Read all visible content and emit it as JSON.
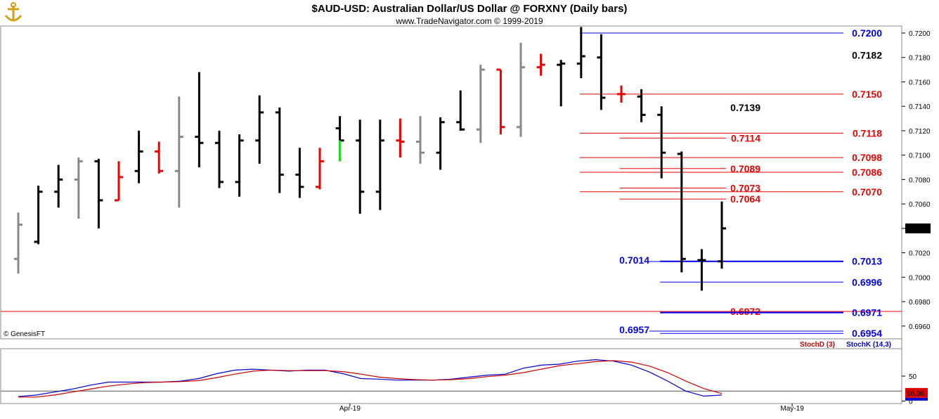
{
  "header": {
    "title": "$AUD-USD:  Australian Dollar/US Dollar @ FORXNY  (Daily bars)",
    "subtitle": "www.TradeNavigator.com © 1999-2019",
    "logo_icon": "anchor-logo-icon",
    "copyright": "© GenesisFT"
  },
  "colors": {
    "up": "#000000",
    "down": "#000000",
    "gray": "#888888",
    "red": "#ee0000",
    "green": "#22dd22",
    "blue": "#0000ee",
    "stochK": "#0000cc",
    "stochD": "#cc0000"
  },
  "chart_data": [
    {
      "type": "ohlc",
      "ylim": [
        0.6945,
        0.7205
      ],
      "y_ticks": [
        "0.6960",
        "0.6980",
        "0.7000",
        "0.7020",
        "0.7040",
        "0.7060",
        "0.7080",
        "0.7100",
        "0.7120",
        "0.7140",
        "0.7160",
        "0.7180",
        "0.7200"
      ],
      "last_price": "0.7040",
      "x_labels": [
        {
          "label": "Apr-19",
          "bar": 16.5
        },
        {
          "label": "May-19",
          "bar": 38.5
        }
      ],
      "bars": [
        {
          "h": 0.7053,
          "l": 0.7003,
          "o": 0.7015,
          "c": 0.7043,
          "color": "gray"
        },
        {
          "h": 0.7075,
          "l": 0.7027,
          "o": 0.7029,
          "c": 0.707,
          "color": "black"
        },
        {
          "h": 0.7092,
          "l": 0.7057,
          "o": 0.707,
          "c": 0.708,
          "color": "black"
        },
        {
          "h": 0.7098,
          "l": 0.7048,
          "o": 0.708,
          "c": 0.7095,
          "color": "gray"
        },
        {
          "h": 0.7097,
          "l": 0.704,
          "o": 0.7095,
          "c": 0.7063,
          "color": "black"
        },
        {
          "h": 0.7095,
          "l": 0.7063,
          "o": 0.7063,
          "c": 0.7082,
          "color": "red"
        },
        {
          "h": 0.712,
          "l": 0.7077,
          "o": 0.7087,
          "c": 0.7103,
          "color": "black"
        },
        {
          "h": 0.7111,
          "l": 0.7085,
          "o": 0.7103,
          "c": 0.7087,
          "color": "red"
        },
        {
          "h": 0.7148,
          "l": 0.7057,
          "o": 0.7087,
          "c": 0.7115,
          "color": "gray"
        },
        {
          "h": 0.7168,
          "l": 0.709,
          "o": 0.7115,
          "c": 0.711,
          "color": "black"
        },
        {
          "h": 0.712,
          "l": 0.7073,
          "o": 0.711,
          "c": 0.7078,
          "color": "black"
        },
        {
          "h": 0.7117,
          "l": 0.7066,
          "o": 0.7078,
          "c": 0.7112,
          "color": "black"
        },
        {
          "h": 0.7149,
          "l": 0.7093,
          "o": 0.7112,
          "c": 0.7135,
          "color": "black"
        },
        {
          "h": 0.7139,
          "l": 0.7069,
          "o": 0.7135,
          "c": 0.7084,
          "color": "black"
        },
        {
          "h": 0.7106,
          "l": 0.7065,
          "o": 0.7084,
          "c": 0.7074,
          "color": "black"
        },
        {
          "h": 0.7106,
          "l": 0.7072,
          "o": 0.7074,
          "c": 0.7095,
          "color": "red"
        },
        {
          "h": 0.7132,
          "l": 0.7095,
          "o": 0.7122,
          "c": 0.7112,
          "color": "black",
          "lowColor": "green"
        },
        {
          "h": 0.7129,
          "l": 0.7052,
          "o": 0.7112,
          "c": 0.707,
          "color": "black"
        },
        {
          "h": 0.7129,
          "l": 0.7055,
          "o": 0.707,
          "c": 0.7112,
          "color": "black"
        },
        {
          "h": 0.713,
          "l": 0.7098,
          "o": 0.7112,
          "c": 0.7111,
          "color": "red"
        },
        {
          "h": 0.7132,
          "l": 0.7093,
          "o": 0.7111,
          "c": 0.7102,
          "color": "gray"
        },
        {
          "h": 0.7131,
          "l": 0.7088,
          "o": 0.7102,
          "c": 0.7127,
          "color": "black"
        },
        {
          "h": 0.7153,
          "l": 0.712,
          "o": 0.7127,
          "c": 0.7121,
          "color": "black"
        },
        {
          "h": 0.7174,
          "l": 0.711,
          "o": 0.7121,
          "c": 0.717,
          "color": "gray"
        },
        {
          "h": 0.717,
          "l": 0.7117,
          "o": 0.717,
          "c": 0.7123,
          "color": "red"
        },
        {
          "h": 0.7192,
          "l": 0.7115,
          "o": 0.7123,
          "c": 0.7172,
          "color": "gray"
        },
        {
          "h": 0.7183,
          "l": 0.7165,
          "o": 0.7172,
          "c": 0.7174,
          "color": "red"
        },
        {
          "h": 0.7178,
          "l": 0.714,
          "o": 0.7174,
          "c": 0.7175,
          "color": "black"
        },
        {
          "h": 0.7205,
          "l": 0.7163,
          "o": 0.7175,
          "c": 0.7181,
          "color": "black"
        },
        {
          "h": 0.7199,
          "l": 0.7137,
          "o": 0.718,
          "c": 0.7147,
          "color": "black"
        },
        {
          "h": 0.7157,
          "l": 0.7143,
          "o": 0.715,
          "c": 0.715,
          "color": "red"
        },
        {
          "h": 0.7154,
          "l": 0.7127,
          "o": 0.7148,
          "c": 0.7133,
          "color": "black"
        },
        {
          "h": 0.714,
          "l": 0.7081,
          "o": 0.7133,
          "c": 0.7102,
          "color": "black"
        },
        {
          "h": 0.7103,
          "l": 0.7004,
          "o": 0.7101,
          "c": 0.7015,
          "color": "black"
        },
        {
          "h": 0.7023,
          "l": 0.6989,
          "o": 0.7014,
          "c": 0.7014,
          "color": "black"
        },
        {
          "h": 0.7062,
          "l": 0.7007,
          "o": 0.7013,
          "c": 0.704,
          "color": "black"
        }
      ],
      "levels": [
        {
          "value": 0.72,
          "label": "0.7200",
          "color": "blue",
          "from_bar": 28,
          "label_side": "right"
        },
        {
          "value": 0.7182,
          "label": "0.7182",
          "color": "black",
          "from_bar": 28,
          "label_side": "right"
        },
        {
          "value": 0.715,
          "label": "0.7150",
          "color": "red",
          "from_bar": 28,
          "label_side": "right"
        },
        {
          "value": 0.7139,
          "label": "0.7139",
          "color": "black",
          "from_bar": 30,
          "label_side": "mid"
        },
        {
          "value": 0.7118,
          "label": "0.7118",
          "color": "red",
          "from_bar": 28,
          "label_side": "right"
        },
        {
          "value": 0.7114,
          "label": "0.7114",
          "color": "red",
          "from_bar": 30,
          "label_side": "mid"
        },
        {
          "value": 0.7098,
          "label": "0.7098",
          "color": "red",
          "from_bar": 28,
          "label_side": "right"
        },
        {
          "value": 0.7089,
          "label": "0.7089",
          "color": "red",
          "from_bar": 30,
          "label_side": "mid"
        },
        {
          "value": 0.7086,
          "label": "0.7086",
          "color": "red",
          "from_bar": 28,
          "label_side": "right"
        },
        {
          "value": 0.7073,
          "label": "0.7073",
          "color": "red",
          "from_bar": 30,
          "label_side": "mid"
        },
        {
          "value": 0.707,
          "label": "0.7070",
          "color": "red",
          "from_bar": 28,
          "label_side": "right"
        },
        {
          "value": 0.7064,
          "label": "0.7064",
          "color": "red",
          "from_bar": 30,
          "label_side": "mid"
        },
        {
          "value": 0.7013,
          "label": "0.7013",
          "color": "blue",
          "from_bar": 32,
          "label_side": "right"
        },
        {
          "value": 0.6996,
          "label": "0.6996",
          "color": "blue",
          "from_bar": 32,
          "label_side": "right"
        },
        {
          "value": 0.6972,
          "label": "0.6972",
          "color": "red",
          "from_bar": 32,
          "label_side": "mid"
        },
        {
          "value": 0.6971,
          "label": "0.6971",
          "color": "blue",
          "from_bar": 32,
          "label_side": "right"
        },
        {
          "value": 0.6954,
          "label": "0.6954",
          "color": "blue",
          "from_bar": 32,
          "label_side": "right"
        }
      ],
      "left_labels": [
        {
          "value": 0.7014,
          "label": "0.7014",
          "color": "blue",
          "to_bar": 32
        },
        {
          "value": 0.6957,
          "label": "0.6957",
          "color": "blue",
          "to_bar": 32
        }
      ],
      "full_width_line": {
        "value": 0.6972,
        "color": "red"
      }
    },
    {
      "type": "line",
      "name": "stochastics",
      "ylim": [
        -5,
        105
      ],
      "y_ticks": [
        "0",
        "50"
      ],
      "reference_line": 20,
      "last_value": "16.36",
      "series": [
        {
          "name": "StochK (14,3)",
          "color": "stochK",
          "values": [
            9,
            12,
            18,
            24,
            32,
            38,
            38,
            38,
            38,
            40,
            45,
            55,
            62,
            64,
            62,
            60,
            62,
            62,
            55,
            45,
            44,
            42,
            42,
            42,
            44,
            48,
            52,
            54,
            66,
            72,
            74,
            80,
            83,
            80,
            72,
            58,
            40,
            20,
            10,
            12
          ]
        },
        {
          "name": "StochD (3)",
          "color": "stochD",
          "values": [
            8,
            8,
            12,
            18,
            24,
            30,
            34,
            37,
            38,
            39,
            41,
            47,
            54,
            60,
            62,
            61,
            61,
            61,
            59,
            54,
            48,
            45,
            43,
            42,
            43,
            45,
            49,
            52,
            57,
            64,
            71,
            75,
            79,
            81,
            78,
            70,
            57,
            40,
            25,
            15
          ]
        }
      ]
    }
  ]
}
